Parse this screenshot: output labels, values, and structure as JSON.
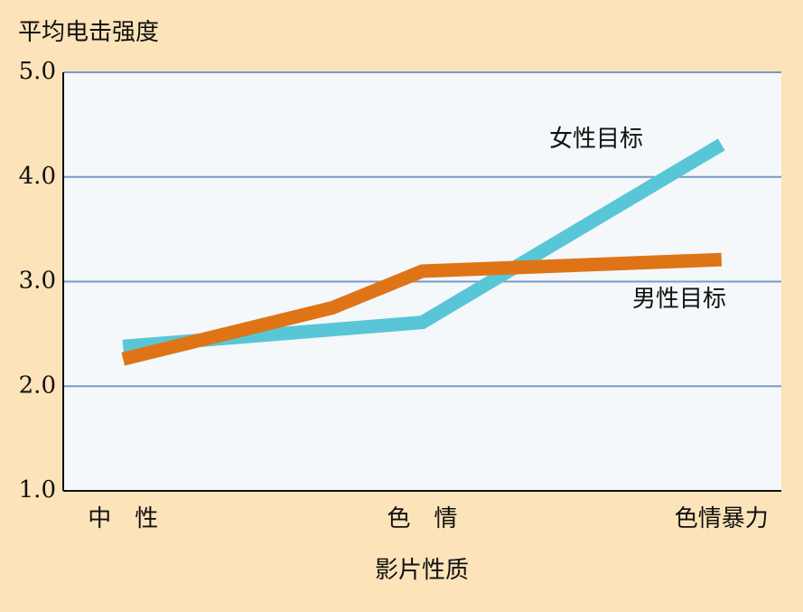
{
  "chart_data": {
    "type": "line",
    "y_label": "平均电击强度",
    "x_label": "影片性质",
    "xlim": [
      -0.2,
      2.2
    ],
    "xticks": [
      {
        "value": 0,
        "label": "中　性"
      },
      {
        "value": 1,
        "label": "色　情"
      },
      {
        "value": 2,
        "label": "色情暴力"
      }
    ],
    "ylim": [
      1,
      5
    ],
    "yticks": [
      {
        "value": 1,
        "label": "1.0"
      },
      {
        "value": 2,
        "label": "2.0"
      },
      {
        "value": 3,
        "label": "3.0"
      },
      {
        "value": 4,
        "label": "4.0"
      },
      {
        "value": 5,
        "label": "5.0"
      }
    ],
    "grid": true,
    "series": [
      {
        "name": "女性目标",
        "color": "#58c6d6",
        "x": [
          0,
          1,
          2
        ],
        "values": [
          2.38,
          2.61,
          4.31
        ]
      },
      {
        "name": "男性目标",
        "color": "#df7417",
        "x": [
          0,
          0.7,
          1,
          2
        ],
        "values": [
          2.26,
          2.75,
          3.1,
          3.21
        ]
      }
    ]
  }
}
